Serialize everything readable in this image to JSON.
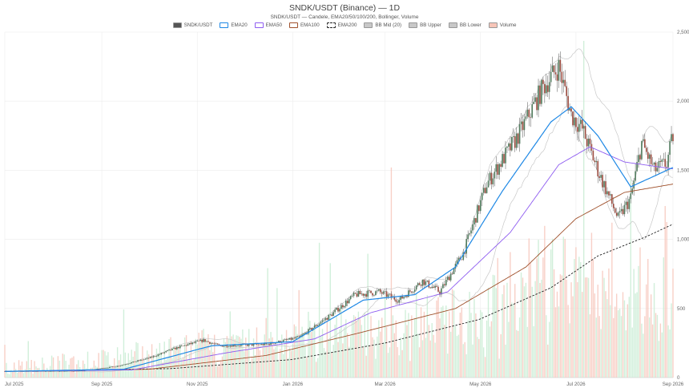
{
  "title": "SNDK/USDT (Binance) — 1D",
  "subtitle": "SNDK/USDT — Candele, EMA20/50/100/200, Bollinger, Volume",
  "legend": [
    {
      "label": "SNDK/USDT",
      "color": "#555555",
      "style": "fill"
    },
    {
      "label": "EMA20",
      "color": "#1e88e5",
      "style": "line"
    },
    {
      "label": "EMA50",
      "color": "#8e5cf0",
      "style": "line"
    },
    {
      "label": "EMA100",
      "color": "#a0522d",
      "style": "line"
    },
    {
      "label": "EMA200",
      "color": "#222222",
      "style": "dash"
    },
    {
      "label": "BB Mid (20)",
      "color": "#c8c8c8",
      "style": "fill"
    },
    {
      "label": "BB Upper",
      "color": "#c8c8c8",
      "style": "fill"
    },
    {
      "label": "BB Lower",
      "color": "#c8c8c8",
      "style": "fill"
    },
    {
      "label": "Volume",
      "color": "#f7c5b8",
      "style": "fill"
    }
  ],
  "chart_data": {
    "type": "candlestick",
    "x_range": [
      "2025-07-01",
      "2026-09-01"
    ],
    "ylim": [
      0,
      2500
    ],
    "y_ticks": [
      0,
      500,
      1000,
      1500,
      2000,
      2500
    ],
    "y_tick_labels": [
      "0",
      "500",
      "1,000",
      "1,500",
      "2,000",
      "2,500"
    ],
    "x_ticks": [
      {
        "date": "2025-07-01",
        "label": "Jul 2025"
      },
      {
        "date": "2025-09-01",
        "label": "Sep 2025"
      },
      {
        "date": "2025-11-01",
        "label": "Nov 2025"
      },
      {
        "date": "2026-01-01",
        "label": "Jan 2026"
      },
      {
        "date": "2026-03-01",
        "label": "Mar 2026"
      },
      {
        "date": "2026-05-01",
        "label": "May 2026"
      },
      {
        "date": "2026-07-01",
        "label": "Jul 2026"
      },
      {
        "date": "2026-09-01",
        "label": "Sep 2026"
      }
    ],
    "price_anchors": [
      {
        "date": "2025-07-01",
        "close": 45
      },
      {
        "date": "2025-08-20",
        "close": 48
      },
      {
        "date": "2025-09-10",
        "close": 80
      },
      {
        "date": "2025-10-01",
        "close": 140
      },
      {
        "date": "2025-10-20",
        "close": 220
      },
      {
        "date": "2025-11-05",
        "close": 270
      },
      {
        "date": "2025-11-15",
        "close": 230
      },
      {
        "date": "2025-12-15",
        "close": 240
      },
      {
        "date": "2026-01-05",
        "close": 290
      },
      {
        "date": "2026-01-25",
        "close": 450
      },
      {
        "date": "2026-02-10",
        "close": 600
      },
      {
        "date": "2026-02-25",
        "close": 620
      },
      {
        "date": "2026-03-10",
        "close": 560
      },
      {
        "date": "2026-03-25",
        "close": 700
      },
      {
        "date": "2026-04-05",
        "close": 620
      },
      {
        "date": "2026-04-20",
        "close": 900
      },
      {
        "date": "2026-05-05",
        "close": 1400
      },
      {
        "date": "2026-05-25",
        "close": 1750
      },
      {
        "date": "2026-06-10",
        "close": 2100
      },
      {
        "date": "2026-06-20",
        "close": 2250
      },
      {
        "date": "2026-06-28",
        "close": 1900
      },
      {
        "date": "2026-07-05",
        "close": 1800
      },
      {
        "date": "2026-07-15",
        "close": 1500
      },
      {
        "date": "2026-07-28",
        "close": 1150
      },
      {
        "date": "2026-08-05",
        "close": 1300
      },
      {
        "date": "2026-08-12",
        "close": 1700
      },
      {
        "date": "2026-08-20",
        "close": 1500
      },
      {
        "date": "2026-08-28",
        "close": 1550
      },
      {
        "date": "2026-09-01",
        "close": 1750
      }
    ],
    "ema20_anchors": [
      {
        "date": "2025-07-01",
        "value": 45
      },
      {
        "date": "2025-09-15",
        "value": 60
      },
      {
        "date": "2025-11-10",
        "value": 230
      },
      {
        "date": "2026-01-01",
        "value": 260
      },
      {
        "date": "2026-02-15",
        "value": 560
      },
      {
        "date": "2026-03-20",
        "value": 600
      },
      {
        "date": "2026-04-15",
        "value": 800
      },
      {
        "date": "2026-05-15",
        "value": 1350
      },
      {
        "date": "2026-06-15",
        "value": 1850
      },
      {
        "date": "2026-06-28",
        "value": 1960
      },
      {
        "date": "2026-07-15",
        "value": 1750
      },
      {
        "date": "2026-08-05",
        "value": 1380
      },
      {
        "date": "2026-09-01",
        "value": 1520
      }
    ],
    "ema50_anchors": [
      {
        "date": "2025-07-01",
        "value": 45
      },
      {
        "date": "2025-09-20",
        "value": 55
      },
      {
        "date": "2025-11-20",
        "value": 180
      },
      {
        "date": "2026-01-15",
        "value": 280
      },
      {
        "date": "2026-02-20",
        "value": 470
      },
      {
        "date": "2026-04-10",
        "value": 620
      },
      {
        "date": "2026-05-20",
        "value": 1050
      },
      {
        "date": "2026-06-20",
        "value": 1540
      },
      {
        "date": "2026-07-10",
        "value": 1670
      },
      {
        "date": "2026-08-01",
        "value": 1560
      },
      {
        "date": "2026-09-01",
        "value": 1510
      }
    ],
    "ema100_anchors": [
      {
        "date": "2025-07-01",
        "value": 45
      },
      {
        "date": "2025-10-01",
        "value": 60
      },
      {
        "date": "2025-12-15",
        "value": 160
      },
      {
        "date": "2026-02-15",
        "value": 330
      },
      {
        "date": "2026-04-15",
        "value": 500
      },
      {
        "date": "2026-05-30",
        "value": 800
      },
      {
        "date": "2026-07-01",
        "value": 1150
      },
      {
        "date": "2026-08-01",
        "value": 1340
      },
      {
        "date": "2026-09-01",
        "value": 1400
      }
    ],
    "ema200_anchors": [
      {
        "date": "2025-07-01",
        "value": 45
      },
      {
        "date": "2025-10-15",
        "value": 65
      },
      {
        "date": "2025-12-31",
        "value": 130
      },
      {
        "date": "2026-03-01",
        "value": 250
      },
      {
        "date": "2026-04-30",
        "value": 420
      },
      {
        "date": "2026-06-15",
        "value": 650
      },
      {
        "date": "2026-07-15",
        "value": 880
      },
      {
        "date": "2026-08-15",
        "value": 1020
      },
      {
        "date": "2026-09-01",
        "value": 1110
      }
    ],
    "volume_scale": "secondary axis, not labeled",
    "grid": true,
    "legend_position": "top-center",
    "y_axis_position": "right"
  }
}
